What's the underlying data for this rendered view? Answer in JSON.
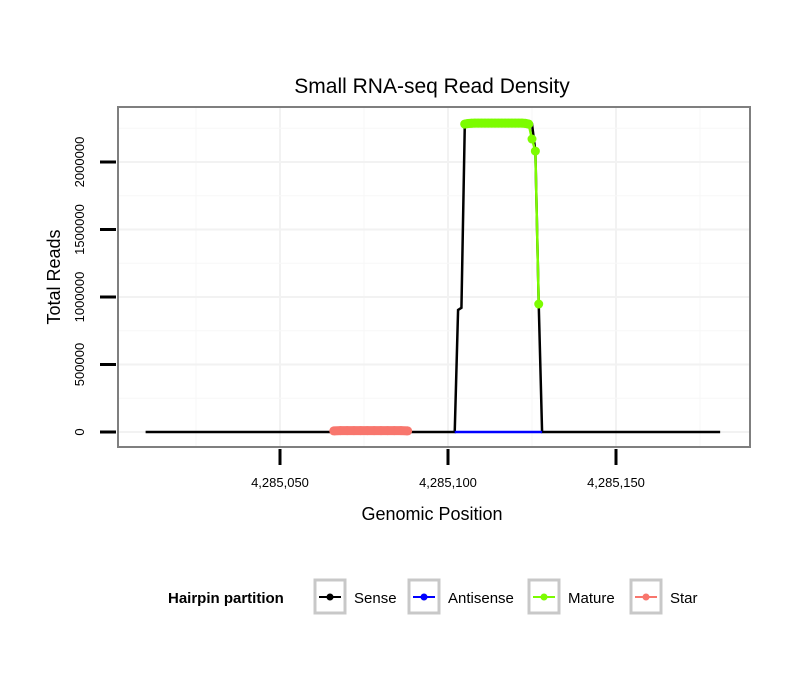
{
  "chart_data": {
    "type": "line",
    "title": "Small RNA-seq Read Density",
    "xlabel": "Genomic Position",
    "ylabel": "Total Reads",
    "xlim": [
      4285001,
      4285190
    ],
    "ylim": [
      -110000,
      2400000
    ],
    "x_ticks": [
      4285050,
      4285100,
      4285150
    ],
    "x_tick_labels": [
      "4,285,050",
      "4,285,100",
      "4,285,150"
    ],
    "y_ticks": [
      0,
      500000,
      1000000,
      1500000,
      2000000
    ],
    "y_tick_labels": [
      "0",
      "500000",
      "1000000",
      "1500000",
      "2000000"
    ],
    "grid": true,
    "legend": {
      "title": "Hairpin partition",
      "placement": "bottom"
    },
    "series": [
      {
        "name": "Sense",
        "color": "#000000",
        "points": [
          [
            4285010,
            0
          ],
          [
            4285102,
            0
          ],
          [
            4285103,
            904000
          ],
          [
            4285104,
            920000
          ],
          [
            4285105,
            2281000
          ],
          [
            4285125,
            2281000
          ],
          [
            4285126,
            2081000
          ],
          [
            4285127,
            948000
          ],
          [
            4285128,
            0
          ],
          [
            4285181,
            0
          ]
        ]
      },
      {
        "name": "Antisense",
        "color": "#0000ff",
        "points": [
          [
            4285102,
            0
          ],
          [
            4285128,
            0
          ]
        ]
      },
      {
        "name": "Mature",
        "color": "#7cfc00",
        "points": [
          [
            4285105,
            2281000
          ],
          [
            4285106,
            2285000
          ],
          [
            4285107,
            2287000
          ],
          [
            4285108,
            2288000
          ],
          [
            4285109,
            2288000
          ],
          [
            4285110,
            2288000
          ],
          [
            4285111,
            2288000
          ],
          [
            4285112,
            2288000
          ],
          [
            4285113,
            2288000
          ],
          [
            4285114,
            2288000
          ],
          [
            4285115,
            2288000
          ],
          [
            4285116,
            2288000
          ],
          [
            4285117,
            2288000
          ],
          [
            4285118,
            2288000
          ],
          [
            4285119,
            2288000
          ],
          [
            4285120,
            2288000
          ],
          [
            4285121,
            2288000
          ],
          [
            4285122,
            2288000
          ],
          [
            4285123,
            2286000
          ],
          [
            4285124,
            2281000
          ],
          [
            4285125,
            2170000
          ],
          [
            4285126,
            2081000
          ],
          [
            4285127,
            948000
          ]
        ]
      },
      {
        "name": "Star",
        "color": "#f8766d",
        "points": [
          [
            4285066,
            8000
          ],
          [
            4285068,
            10000
          ],
          [
            4285070,
            10000
          ],
          [
            4285072,
            10000
          ],
          [
            4285074,
            10000
          ],
          [
            4285076,
            10000
          ],
          [
            4285078,
            10000
          ],
          [
            4285080,
            10000
          ],
          [
            4285082,
            10000
          ],
          [
            4285084,
            10000
          ],
          [
            4285086,
            10000
          ],
          [
            4285088,
            8000
          ]
        ]
      }
    ]
  }
}
